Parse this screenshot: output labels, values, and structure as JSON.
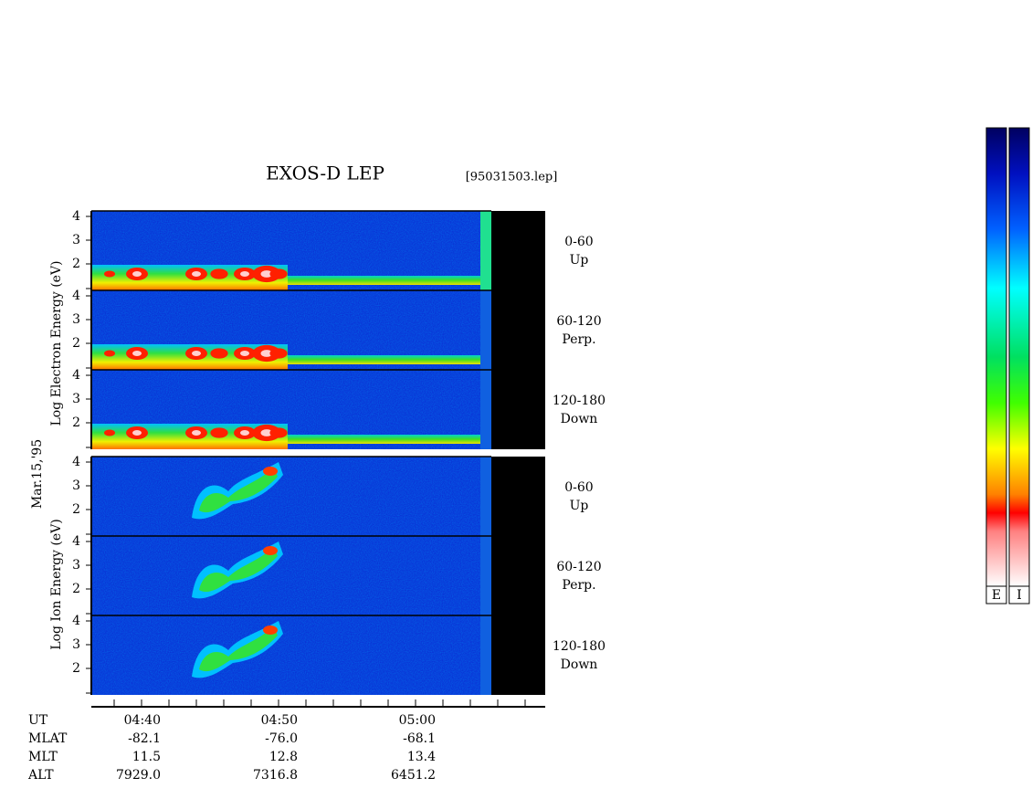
{
  "header": {
    "title": "EXOS-D LEP",
    "file": "[95031503.lep]"
  },
  "date_label": "Mar.15,'95",
  "groups": [
    {
      "axis_label": "Log   Electron   Energy (eV)",
      "panels": [
        {
          "label": [
            "0-60",
            "Up"
          ],
          "yticks": [
            "4",
            "3",
            "2"
          ]
        },
        {
          "label": [
            "60-120",
            "Perp."
          ],
          "yticks": [
            "4",
            "3",
            "2"
          ]
        },
        {
          "label": [
            "120-180",
            "Down"
          ],
          "yticks": [
            "4",
            "3",
            "2"
          ]
        }
      ]
    },
    {
      "axis_label": "Log   Ion   Energy (eV)",
      "panels": [
        {
          "label": [
            "0-60",
            "Up"
          ],
          "yticks": [
            "4",
            "3",
            "2"
          ]
        },
        {
          "label": [
            "60-120",
            "Perp."
          ],
          "yticks": [
            "4",
            "3",
            "2"
          ]
        },
        {
          "label": [
            "120-180",
            "Down"
          ],
          "yticks": [
            "4",
            "3",
            "2"
          ]
        }
      ]
    }
  ],
  "ephemeris": [
    {
      "label": "UT",
      "values": [
        "04:40",
        "04:50",
        "05:00"
      ]
    },
    {
      "label": "MLAT",
      "values": [
        "-82.1",
        "-76.0",
        "-68.1"
      ]
    },
    {
      "label": "MLT",
      "values": [
        "11.5",
        "12.8",
        "13.4"
      ]
    },
    {
      "label": "ALT",
      "values": [
        "7929.0",
        "7316.8",
        "6451.2"
      ]
    }
  ],
  "colorbars": [
    "E",
    "I"
  ]
}
